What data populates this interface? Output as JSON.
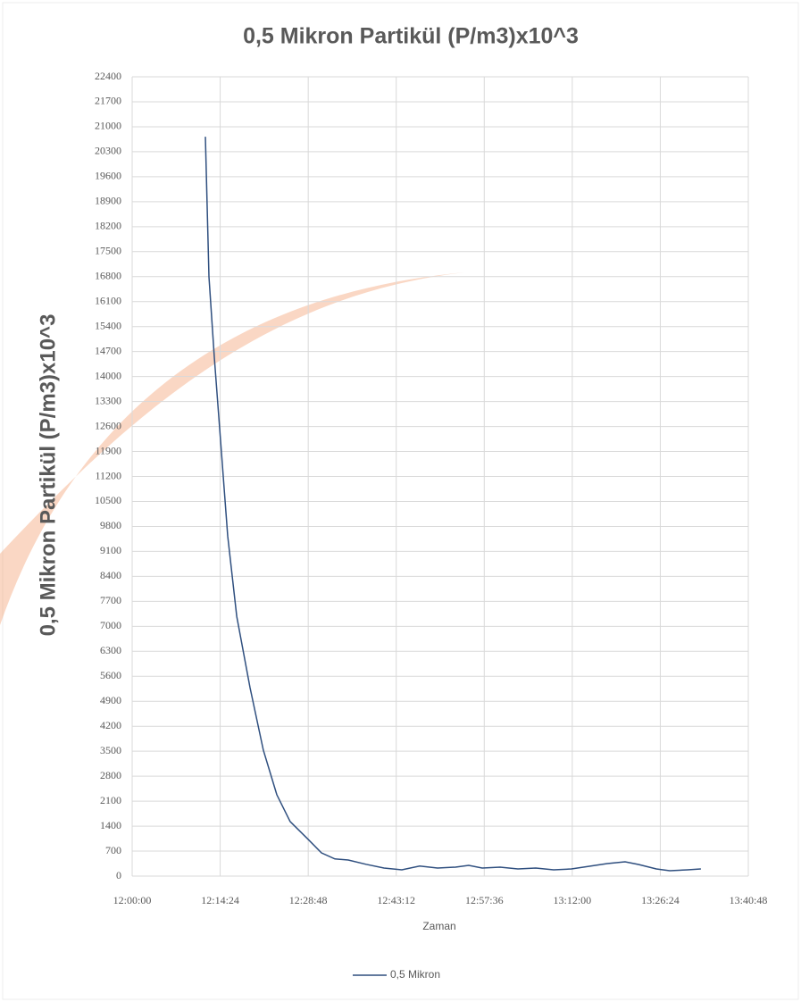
{
  "chart_data": {
    "type": "line",
    "title": "0,5 Mikron Partikül (P/m3)x10^3",
    "x_label": "Zaman",
    "y_label": "0,5 Mikron Partikül (P/m3)x10^3",
    "x": [
      "12:11:59",
      "12:12:34",
      "12:13:26",
      "12:14:19",
      "12:15:38",
      "12:17:06",
      "12:19:17",
      "12:21:28",
      "12:23:40",
      "12:25:51",
      "12:28:47",
      "12:30:58",
      "12:33:10",
      "12:35:21",
      "12:38:16",
      "12:41:12",
      "12:44:07",
      "12:47:02",
      "12:49:58",
      "12:52:53",
      "12:55:04",
      "12:57:16",
      "13:00:11",
      "13:03:07",
      "13:06:02",
      "13:08:57",
      "13:11:52",
      "13:14:48",
      "13:17:43",
      "13:20:38",
      "13:22:50",
      "13:25:45",
      "13:27:57",
      "13:30:52",
      "13:33:03"
    ],
    "series": [
      {
        "name": "0,5 Mikron",
        "color": "#2f4f7f",
        "values": [
          20720,
          16800,
          14540,
          12540,
          9530,
          7280,
          5280,
          3530,
          2280,
          1530,
          1030,
          650,
          480,
          450,
          330,
          225,
          175,
          280,
          225,
          250,
          300,
          225,
          250,
          200,
          225,
          175,
          200,
          275,
          350,
          400,
          325,
          200,
          150,
          175,
          200
        ]
      }
    ],
    "xlim": [
      "12:00:00",
      "13:40:48"
    ],
    "xticks": [
      "12:00:00",
      "12:14:24",
      "12:28:48",
      "12:43:12",
      "12:57:36",
      "13:12:00",
      "13:26:24",
      "13:40:48"
    ],
    "ylim": [
      0,
      22400
    ],
    "yticks": [
      0,
      700,
      1400,
      2100,
      2800,
      3500,
      4200,
      4900,
      5600,
      6300,
      7000,
      7700,
      8400,
      9100,
      9800,
      10500,
      11200,
      11900,
      12600,
      13300,
      14000,
      14700,
      15400,
      16100,
      16800,
      17500,
      18200,
      18900,
      19600,
      20300,
      21000,
      21700,
      22400
    ],
    "grid": true,
    "legend": "bottom"
  }
}
